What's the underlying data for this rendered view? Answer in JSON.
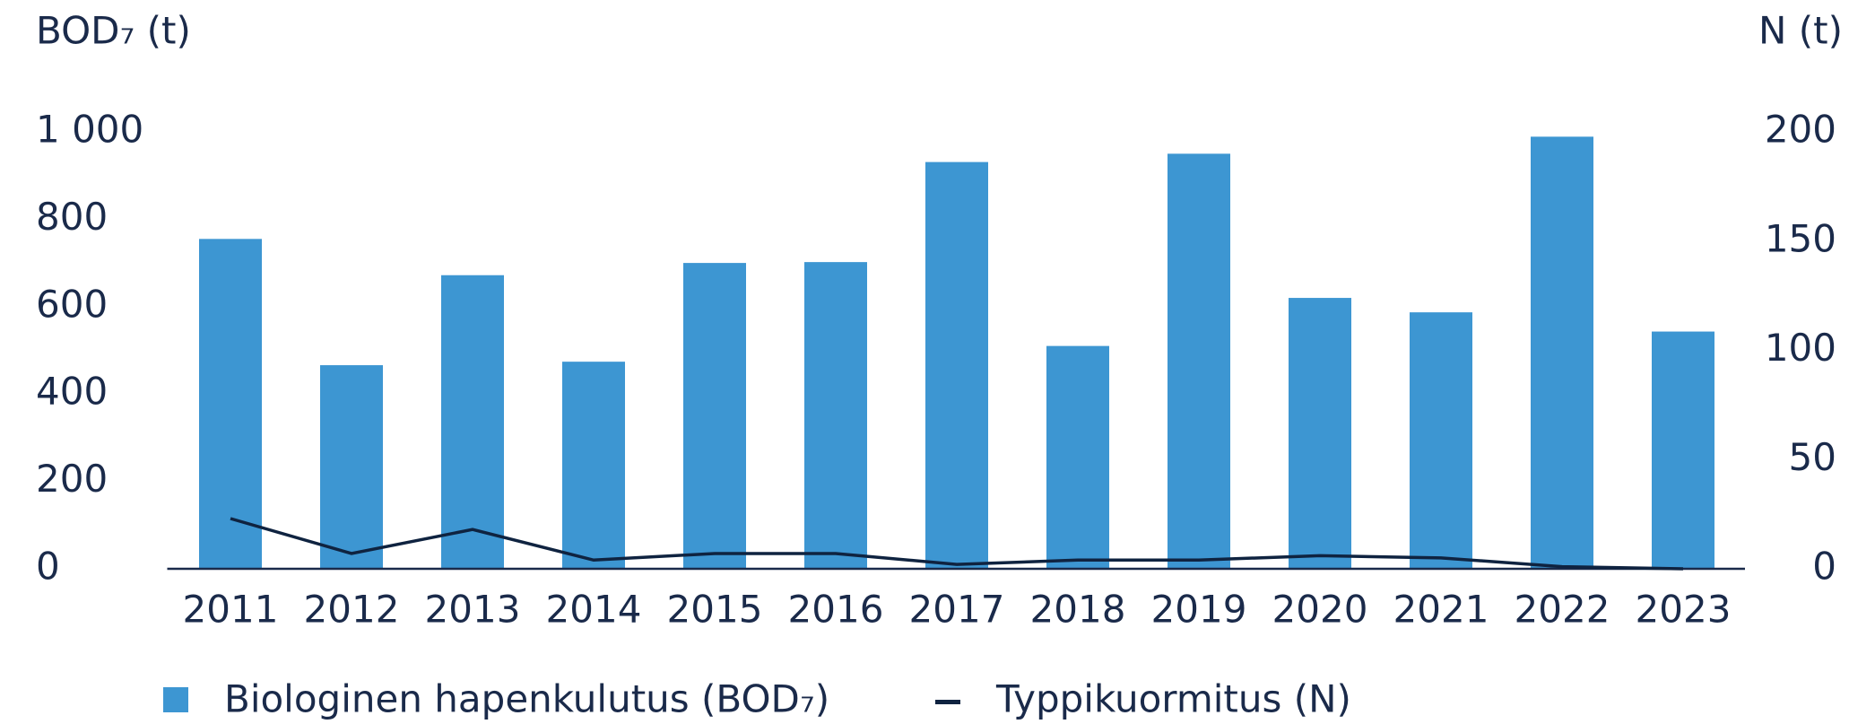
{
  "chart_data": {
    "type": "bar",
    "y_label": "BOD₇ (t)",
    "y2_label": "N (t)",
    "categories": [
      "2011",
      "2012",
      "2013",
      "2014",
      "2015",
      "2016",
      "2017",
      "2018",
      "2019",
      "2020",
      "2021",
      "2022",
      "2023"
    ],
    "series": [
      {
        "name": "Biologinen hapenkulutus (BOD₇)",
        "color": "#3d96d2",
        "type": "bar",
        "values": [
          755,
          466,
          672,
          474,
          700,
          702,
          931,
          510,
          950,
          620,
          587,
          989,
          543
        ]
      },
      {
        "name": "Typpikuormitus (N)",
        "color": "#0f2340",
        "type": "line",
        "axis": "y2",
        "values": [
          23,
          7,
          18,
          4,
          7,
          7,
          2,
          4,
          4,
          6,
          5,
          1,
          0
        ]
      }
    ],
    "ylim": [
      0,
      1000
    ],
    "yticks": [
      0,
      200,
      400,
      600,
      800,
      {
        "value": 1000,
        "label": "1 000"
      }
    ],
    "y2lim": [
      0,
      200
    ],
    "y2ticks": [
      0,
      50,
      100,
      150,
      200
    ],
    "legend": "bottom"
  }
}
